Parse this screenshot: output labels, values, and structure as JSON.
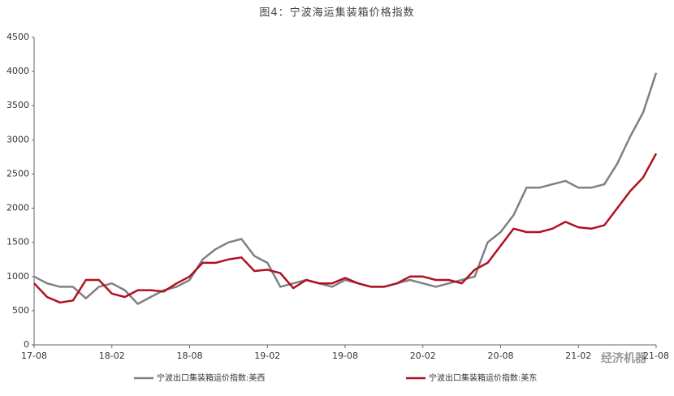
{
  "chart_data": {
    "type": "line",
    "title": "图4：宁波海运集装箱价格指数",
    "categories": [
      "17-08",
      null,
      null,
      null,
      null,
      null,
      "18-02",
      null,
      null,
      null,
      null,
      null,
      "18-08",
      null,
      null,
      null,
      null,
      null,
      "19-02",
      null,
      null,
      null,
      null,
      null,
      "19-08",
      null,
      null,
      null,
      null,
      null,
      "20-02",
      null,
      null,
      null,
      null,
      null,
      "20-08",
      null,
      null,
      null,
      null,
      null,
      "21-02",
      null,
      null,
      null,
      null,
      null,
      "21-08"
    ],
    "series": [
      {
        "name": "宁波出口集装箱运价指数:美西",
        "color": "#808080",
        "values": [
          1000,
          900,
          850,
          850,
          680,
          850,
          900,
          800,
          600,
          700,
          800,
          850,
          950,
          1250,
          1400,
          1500,
          1550,
          1300,
          1200,
          850,
          900,
          950,
          900,
          850,
          950,
          900,
          850,
          850,
          900,
          950,
          900,
          850,
          900,
          950,
          1000,
          1500,
          1650,
          1900,
          2300,
          2300,
          2350,
          2400,
          2300,
          2300,
          2350,
          2650,
          3050,
          3400,
          3980
        ]
      },
      {
        "name": "宁波出口集装箱运价指数:美东",
        "color": "#b01020",
        "values": [
          900,
          700,
          620,
          650,
          950,
          950,
          750,
          700,
          800,
          800,
          780,
          900,
          1000,
          1200,
          1200,
          1250,
          1280,
          1080,
          1100,
          1050,
          830,
          950,
          900,
          900,
          980,
          900,
          850,
          850,
          900,
          1000,
          1000,
          950,
          950,
          900,
          1100,
          1200,
          1450,
          1700,
          1650,
          1650,
          1700,
          1800,
          1720,
          1700,
          1750,
          2000,
          2250,
          2450,
          2800
        ]
      }
    ],
    "ylim": [
      0,
      4500
    ],
    "yticks": [
      0,
      500,
      1000,
      1500,
      2000,
      2500,
      3000,
      3500,
      4000,
      4500
    ],
    "watermark": "经济机器"
  }
}
